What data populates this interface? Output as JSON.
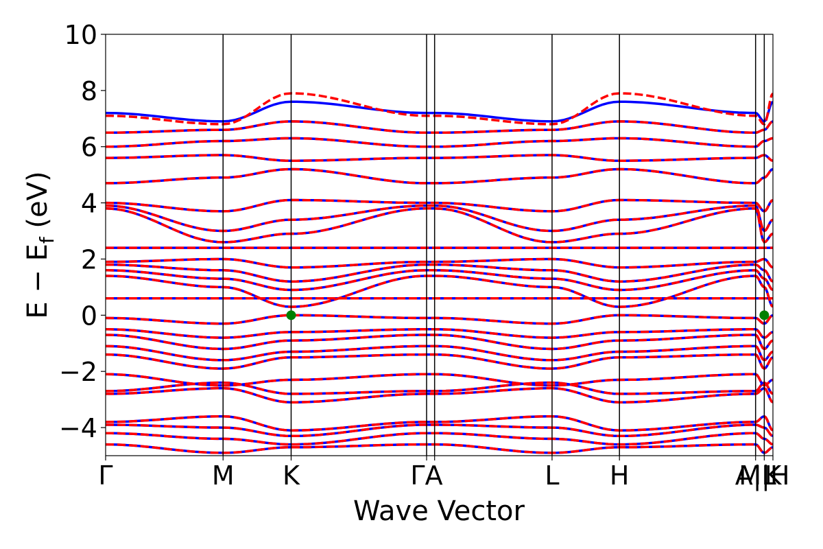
{
  "chart_data": {
    "type": "line",
    "title": "",
    "xlabel": "Wave Vector",
    "ylabel_parts": {
      "main": "E − E",
      "sub": "f",
      "unit": " (eV)"
    },
    "ylim": [
      -5,
      10
    ],
    "yticks": [
      -4,
      -2,
      0,
      2,
      4,
      6,
      8,
      10
    ],
    "ytick_labels": [
      "−4",
      "−2",
      "0",
      "2",
      "4",
      "6",
      "8",
      "10"
    ],
    "grid": false,
    "legend": "none",
    "kpath": {
      "positions": [
        0,
        0.176,
        0.278,
        0.481,
        0.493,
        0.669,
        0.77,
        0.974,
        0.987,
        1.0
      ],
      "labels": [
        "Γ",
        "M",
        "K",
        "Γ",
        "A",
        "L",
        "H",
        "A",
        "M",
        "K"
      ],
      "tick_label_text": [
        "Γ",
        "M",
        "K",
        "ΓA",
        "",
        "L",
        "H",
        "A|L",
        "M|H",
        "K"
      ]
    },
    "colors": {
      "spin_up": "#0000ff",
      "spin_down": "#ff0000",
      "marker": "#008000",
      "axis": "#000000"
    },
    "series": [
      {
        "style": "solid",
        "bands_at_kpoints": [
          [
            -4.6,
            -4.9,
            -4.7,
            -4.6,
            -4.6,
            -4.9,
            -4.7,
            -4.6,
            -4.9,
            -4.7
          ],
          [
            -4.2,
            -4.4,
            -4.6,
            -4.2,
            -4.2,
            -4.4,
            -4.6,
            -4.2,
            -4.4,
            -4.6
          ],
          [
            -3.9,
            -4.0,
            -4.3,
            -3.9,
            -3.9,
            -4.0,
            -4.3,
            -3.9,
            -4.0,
            -4.3
          ],
          [
            -3.8,
            -3.6,
            -4.1,
            -3.8,
            -3.8,
            -3.6,
            -4.1,
            -3.8,
            -3.6,
            -4.1
          ],
          [
            -2.8,
            -2.6,
            -3.1,
            -2.8,
            -2.8,
            -2.6,
            -3.1,
            -2.8,
            -2.6,
            -3.1
          ],
          [
            -2.7,
            -2.4,
            -2.8,
            -2.7,
            -2.7,
            -2.4,
            -2.8,
            -2.7,
            -2.4,
            -2.8
          ],
          [
            -2.1,
            -2.5,
            -2.3,
            -2.1,
            -2.1,
            -2.5,
            -2.3,
            -2.1,
            -2.5,
            -2.3
          ],
          [
            -1.4,
            -1.9,
            -1.5,
            -1.4,
            -1.4,
            -1.9,
            -1.5,
            -1.4,
            -1.9,
            -1.5
          ],
          [
            -1.1,
            -1.6,
            -1.3,
            -1.1,
            -1.1,
            -1.6,
            -1.3,
            -1.1,
            -1.6,
            -1.3
          ],
          [
            -0.7,
            -1.2,
            -0.9,
            -0.7,
            -0.7,
            -1.2,
            -0.9,
            -0.7,
            -1.2,
            -0.9
          ],
          [
            -0.5,
            -0.8,
            -0.6,
            -0.5,
            -0.5,
            -0.8,
            -0.6,
            -0.5,
            -0.8,
            -0.6
          ],
          [
            -0.1,
            -0.3,
            0.0,
            -0.1,
            -0.1,
            -0.3,
            0.0,
            -0.1,
            -0.3,
            0.0
          ],
          [
            0.6,
            0.6,
            0.6,
            0.6,
            0.6,
            0.6,
            0.6,
            0.6,
            0.6,
            0.6
          ],
          [
            1.4,
            1.0,
            0.3,
            1.4,
            1.4,
            1.0,
            0.3,
            1.4,
            1.0,
            0.3
          ],
          [
            1.6,
            1.3,
            0.9,
            1.6,
            1.6,
            1.3,
            0.9,
            1.6,
            1.3,
            0.9
          ],
          [
            1.8,
            1.6,
            1.2,
            1.8,
            1.8,
            1.6,
            1.2,
            1.8,
            1.6,
            1.2
          ],
          [
            1.9,
            2.0,
            1.7,
            1.9,
            1.9,
            2.0,
            1.7,
            1.9,
            2.0,
            1.7
          ],
          [
            2.4,
            2.4,
            2.4,
            2.4,
            2.4,
            2.4,
            2.4,
            2.4,
            2.4,
            2.4
          ],
          [
            3.8,
            2.6,
            2.9,
            3.8,
            3.8,
            2.6,
            2.9,
            3.8,
            2.6,
            2.9
          ],
          [
            3.9,
            3.0,
            3.4,
            3.9,
            3.9,
            3.0,
            3.4,
            3.9,
            3.0,
            3.4
          ],
          [
            4.0,
            3.7,
            4.1,
            4.0,
            4.0,
            3.7,
            4.1,
            4.0,
            3.7,
            4.1
          ],
          [
            4.7,
            4.9,
            5.2,
            4.7,
            4.7,
            4.9,
            5.2,
            4.7,
            4.9,
            5.2
          ],
          [
            5.6,
            5.7,
            5.5,
            5.6,
            5.6,
            5.7,
            5.5,
            5.6,
            5.7,
            5.5
          ],
          [
            6.0,
            6.2,
            6.3,
            6.0,
            6.0,
            6.2,
            6.3,
            6.0,
            6.2,
            6.3
          ],
          [
            6.5,
            6.6,
            6.9,
            6.5,
            6.5,
            6.6,
            6.9,
            6.5,
            6.6,
            6.9
          ],
          [
            7.2,
            6.9,
            7.6,
            7.2,
            7.2,
            6.9,
            7.6,
            7.2,
            6.9,
            7.6
          ]
        ]
      },
      {
        "style": "dashed",
        "bands_at_kpoints": [
          [
            -4.6,
            -4.9,
            -4.7,
            -4.6,
            -4.6,
            -4.9,
            -4.7,
            -4.6,
            -4.9,
            -4.7
          ],
          [
            -4.2,
            -4.4,
            -4.6,
            -4.2,
            -4.2,
            -4.4,
            -4.6,
            -4.2,
            -4.4,
            -4.6
          ],
          [
            -3.9,
            -4.0,
            -4.3,
            -3.9,
            -3.9,
            -4.0,
            -4.3,
            -3.9,
            -4.0,
            -4.3
          ],
          [
            -3.8,
            -3.6,
            -4.1,
            -3.8,
            -3.8,
            -3.6,
            -4.1,
            -3.8,
            -3.6,
            -4.1
          ],
          [
            -2.8,
            -2.6,
            -3.1,
            -2.8,
            -2.8,
            -2.6,
            -3.1,
            -2.8,
            -2.6,
            -3.1
          ],
          [
            -2.7,
            -2.4,
            -2.8,
            -2.7,
            -2.7,
            -2.4,
            -2.8,
            -2.7,
            -2.4,
            -2.8
          ],
          [
            -2.1,
            -2.5,
            -2.3,
            -2.1,
            -2.1,
            -2.5,
            -2.3,
            -2.1,
            -2.5,
            -2.3
          ],
          [
            -1.4,
            -1.9,
            -1.5,
            -1.4,
            -1.4,
            -1.9,
            -1.5,
            -1.4,
            -1.9,
            -1.5
          ],
          [
            -1.1,
            -1.6,
            -1.3,
            -1.1,
            -1.1,
            -1.6,
            -1.3,
            -1.1,
            -1.6,
            -1.3
          ],
          [
            -0.7,
            -1.2,
            -0.9,
            -0.7,
            -0.7,
            -1.2,
            -0.9,
            -0.7,
            -1.2,
            -0.9
          ],
          [
            -0.5,
            -0.8,
            -0.6,
            -0.5,
            -0.5,
            -0.8,
            -0.6,
            -0.5,
            -0.8,
            -0.6
          ],
          [
            -0.1,
            -0.3,
            0.0,
            -0.1,
            -0.1,
            -0.3,
            0.0,
            -0.1,
            -0.3,
            0.0
          ],
          [
            0.6,
            0.6,
            0.6,
            0.6,
            0.6,
            0.6,
            0.6,
            0.6,
            0.6,
            0.6
          ],
          [
            1.4,
            1.0,
            0.3,
            1.4,
            1.4,
            1.0,
            0.3,
            1.4,
            1.0,
            0.3
          ],
          [
            1.6,
            1.3,
            0.9,
            1.6,
            1.6,
            1.3,
            0.9,
            1.6,
            1.3,
            0.9
          ],
          [
            1.8,
            1.6,
            1.2,
            1.8,
            1.8,
            1.6,
            1.2,
            1.8,
            1.6,
            1.2
          ],
          [
            1.9,
            2.0,
            1.7,
            1.9,
            1.9,
            2.0,
            1.7,
            1.9,
            2.0,
            1.7
          ],
          [
            2.4,
            2.4,
            2.4,
            2.4,
            2.4,
            2.4,
            2.4,
            2.4,
            2.4,
            2.4
          ],
          [
            3.8,
            2.6,
            2.9,
            3.8,
            3.8,
            2.6,
            2.9,
            3.8,
            2.6,
            2.9
          ],
          [
            3.9,
            3.0,
            3.4,
            3.9,
            3.9,
            3.0,
            3.4,
            3.9,
            3.0,
            3.4
          ],
          [
            4.0,
            3.7,
            4.1,
            4.0,
            4.0,
            3.7,
            4.1,
            4.0,
            3.7,
            4.1
          ],
          [
            4.7,
            4.9,
            5.2,
            4.7,
            4.7,
            4.9,
            5.2,
            4.7,
            4.9,
            5.2
          ],
          [
            5.6,
            5.7,
            5.5,
            5.6,
            5.6,
            5.7,
            5.5,
            5.6,
            5.7,
            5.5
          ],
          [
            6.0,
            6.2,
            6.3,
            6.0,
            6.0,
            6.2,
            6.3,
            6.0,
            6.2,
            6.3
          ],
          [
            6.5,
            6.6,
            6.9,
            6.5,
            6.5,
            6.6,
            6.9,
            6.5,
            6.6,
            6.9
          ],
          [
            7.1,
            6.8,
            7.9,
            7.1,
            7.1,
            6.8,
            7.9,
            7.1,
            6.8,
            7.9
          ]
        ]
      }
    ],
    "markers": [
      {
        "k": 0.278,
        "y": 0.0
      },
      {
        "k": 0.987,
        "y": 0.0
      }
    ]
  }
}
